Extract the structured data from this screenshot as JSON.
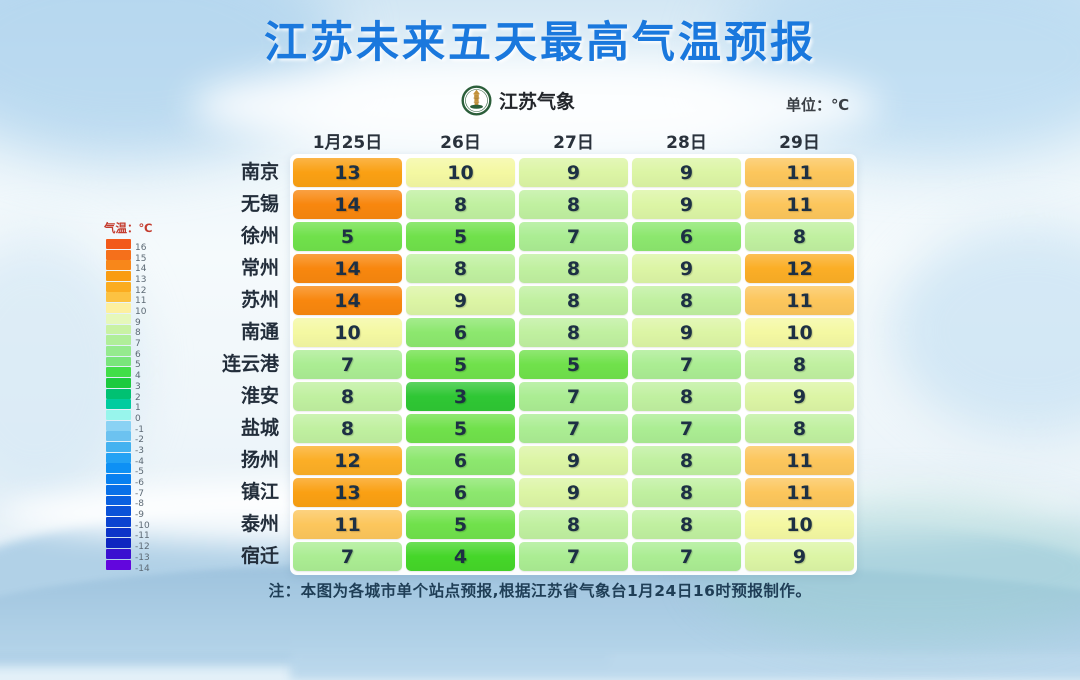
{
  "header": {
    "title": "江苏未来五天最高气温预报",
    "brand_name": "江苏气象",
    "unit_label": "单位：℃"
  },
  "legend": {
    "title": "气温：℃",
    "items": [
      {
        "label": "16",
        "color": "#f2591a"
      },
      {
        "label": "15",
        "color": "#f5701b"
      },
      {
        "label": "14",
        "color": "#f8871a"
      },
      {
        "label": "13",
        "color": "#f99c12"
      },
      {
        "label": "12",
        "color": "#fbac20"
      },
      {
        "label": "11",
        "color": "#fcc242"
      },
      {
        "label": "10",
        "color": "#fdf0a0"
      },
      {
        "label": "9",
        "color": "#e6f8bb"
      },
      {
        "label": "8",
        "color": "#c9f2a4"
      },
      {
        "label": "7",
        "color": "#b0ee99"
      },
      {
        "label": "6",
        "color": "#95ea8e"
      },
      {
        "label": "5",
        "color": "#79e57b"
      },
      {
        "label": "4",
        "color": "#41de48"
      },
      {
        "label": "3",
        "color": "#1cca3e"
      },
      {
        "label": "2",
        "color": "#00c172"
      },
      {
        "label": "1",
        "color": "#00cc9f"
      },
      {
        "label": "0",
        "color": "#98f5ec"
      },
      {
        "label": "-1",
        "color": "#8ad2f4"
      },
      {
        "label": "-2",
        "color": "#6cc2f0"
      },
      {
        "label": "-3",
        "color": "#44b2f0"
      },
      {
        "label": "-4",
        "color": "#24a2f4"
      },
      {
        "label": "-5",
        "color": "#0e90f4"
      },
      {
        "label": "-6",
        "color": "#0880f0"
      },
      {
        "label": "-7",
        "color": "#0970e8"
      },
      {
        "label": "-8",
        "color": "#0a60e0"
      },
      {
        "label": "-9",
        "color": "#0b52d8"
      },
      {
        "label": "-10",
        "color": "#0c44d0"
      },
      {
        "label": "-11",
        "color": "#0d34c8"
      },
      {
        "label": "-12",
        "color": "#0e26c0"
      },
      {
        "label": "-13",
        "color": "#3a10d0"
      },
      {
        "label": "-14",
        "color": "#6206dd"
      }
    ]
  },
  "table": {
    "date_headers": [
      "1月25日",
      "26日",
      "27日",
      "28日",
      "29日"
    ],
    "rows": [
      {
        "city": "南京",
        "values": [
          13,
          10,
          9,
          9,
          11
        ]
      },
      {
        "city": "无锡",
        "values": [
          14,
          8,
          8,
          9,
          11
        ]
      },
      {
        "city": "徐州",
        "values": [
          5,
          5,
          7,
          6,
          8
        ]
      },
      {
        "city": "常州",
        "values": [
          14,
          8,
          8,
          9,
          12
        ]
      },
      {
        "city": "苏州",
        "values": [
          14,
          9,
          8,
          8,
          11
        ]
      },
      {
        "city": "南通",
        "values": [
          10,
          6,
          8,
          9,
          10
        ]
      },
      {
        "city": "连云港",
        "values": [
          7,
          5,
          5,
          7,
          8
        ]
      },
      {
        "city": "淮安",
        "values": [
          8,
          3,
          7,
          8,
          9
        ]
      },
      {
        "city": "盐城",
        "values": [
          8,
          5,
          7,
          7,
          8
        ]
      },
      {
        "city": "扬州",
        "values": [
          12,
          6,
          9,
          8,
          11
        ]
      },
      {
        "city": "镇江",
        "values": [
          13,
          6,
          9,
          8,
          11
        ]
      },
      {
        "city": "泰州",
        "values": [
          11,
          5,
          8,
          8,
          10
        ]
      },
      {
        "city": "宿迁",
        "values": [
          7,
          4,
          7,
          7,
          9
        ]
      }
    ]
  },
  "temperature_colors": {
    "3": "#2fc734",
    "4": "#45d629",
    "5": "#70e14b",
    "6": "#8ce76e",
    "7": "#abed93",
    "8": "#c0f0a0",
    "9": "#dcf5a5",
    "10": "#f4f8a2",
    "11": "#fcc65c",
    "12": "#fbae26",
    "13": "#faa013",
    "14": "#f8870e"
  },
  "footer": {
    "note": "注：本图为各城市单个站点预报,根据江苏省气象台1月24日16时预报制作。"
  },
  "colors": {
    "title_blue": "#1a78dd",
    "legend_title_red": "#c43b2d",
    "note_text": "#1f3e56"
  },
  "chart_data": {
    "type": "heatmap",
    "title": "江苏未来五天最高气温预报",
    "unit": "℃",
    "columns": [
      "1月25日",
      "26日",
      "27日",
      "28日",
      "29日"
    ],
    "rows": [
      "南京",
      "无锡",
      "徐州",
      "常州",
      "苏州",
      "南通",
      "连云港",
      "淮安",
      "盐城",
      "扬州",
      "镇江",
      "泰州",
      "宿迁"
    ],
    "values": [
      [
        13,
        10,
        9,
        9,
        11
      ],
      [
        14,
        8,
        8,
        9,
        11
      ],
      [
        5,
        5,
        7,
        6,
        8
      ],
      [
        14,
        8,
        8,
        9,
        12
      ],
      [
        14,
        9,
        8,
        8,
        11
      ],
      [
        10,
        6,
        8,
        9,
        10
      ],
      [
        7,
        5,
        5,
        7,
        8
      ],
      [
        8,
        3,
        7,
        8,
        9
      ],
      [
        8,
        5,
        7,
        7,
        8
      ],
      [
        12,
        6,
        9,
        8,
        11
      ],
      [
        13,
        6,
        9,
        8,
        11
      ],
      [
        11,
        5,
        8,
        8,
        10
      ],
      [
        7,
        4,
        7,
        7,
        9
      ]
    ],
    "colorbar": {
      "label": "气温：℃",
      "tick_max": 16,
      "tick_min": -14
    },
    "legend_position": "left"
  }
}
